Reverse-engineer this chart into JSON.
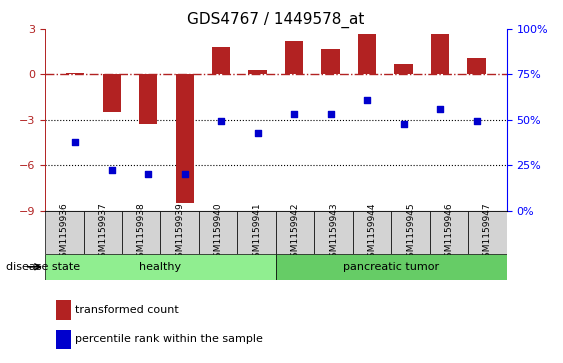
{
  "title": "GDS4767 / 1449578_at",
  "samples": [
    "GSM1159936",
    "GSM1159937",
    "GSM1159938",
    "GSM1159939",
    "GSM1159940",
    "GSM1159941",
    "GSM1159942",
    "GSM1159943",
    "GSM1159944",
    "GSM1159945",
    "GSM1159946",
    "GSM1159947"
  ],
  "bar_values": [
    0.1,
    -2.5,
    -3.3,
    -8.5,
    1.8,
    0.3,
    2.2,
    1.7,
    2.7,
    0.7,
    2.7,
    1.1
  ],
  "dot_values_left": [
    -4.5,
    -6.3,
    -6.6,
    -6.6,
    -3.1,
    -3.9,
    -2.6,
    -2.6,
    -1.7,
    -3.3,
    -2.3,
    -3.1
  ],
  "bar_color": "#B22222",
  "dot_color": "#0000CD",
  "ylim_left": [
    -9,
    3
  ],
  "ylim_right": [
    0,
    100
  ],
  "yticks_left": [
    -9,
    -6,
    -3,
    0,
    3
  ],
  "yticks_right": [
    0,
    25,
    50,
    75,
    100
  ],
  "hline_y": 0,
  "dotted_lines": [
    -3,
    -6
  ],
  "healthy_count": 6,
  "tumor_count": 6,
  "healthy_label": "healthy",
  "tumor_label": "pancreatic tumor",
  "healthy_color": "#90EE90",
  "tumor_color": "#66CC66",
  "disease_state_label": "disease state",
  "legend_bar_label": "transformed count",
  "legend_dot_label": "percentile rank within the sample",
  "right_ytick_labels": [
    "0%",
    "25%",
    "50%",
    "75%",
    "100%"
  ]
}
